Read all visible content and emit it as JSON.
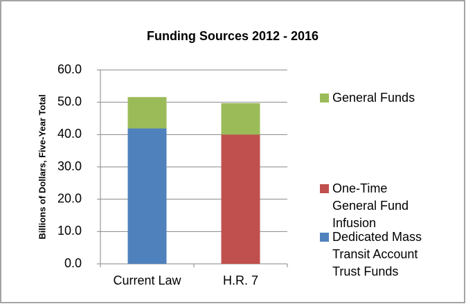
{
  "chart_data": {
    "type": "stacked_bar",
    "title": "Funding Sources 2012 - 2016",
    "y_label": "Billions of Dollars, Five-Year Total",
    "categories": [
      "Current Law",
      "H.R. 7"
    ],
    "series": [
      {
        "name": "Dedicated Mass Transit Account Trust Funds",
        "color": "#4f81bd",
        "values": [
          41.9,
          0
        ]
      },
      {
        "name": "One-Time General Fund Infusion",
        "color": "#c0504d",
        "values": [
          0,
          40.0
        ]
      },
      {
        "name": "General Funds",
        "color": "#9bbb59",
        "values": [
          9.7,
          9.7
        ]
      }
    ],
    "ylim": [
      0,
      60
    ],
    "yticks": [
      {
        "value": 0,
        "label": "0.0"
      },
      {
        "value": 10,
        "label": "10.0"
      },
      {
        "value": 20,
        "label": "20.0"
      },
      {
        "value": 30,
        "label": "30.0"
      },
      {
        "value": 40,
        "label": "40.0"
      },
      {
        "value": 50,
        "label": "50.0"
      },
      {
        "value": 60,
        "label": "60.0"
      }
    ],
    "grid": true,
    "legend": "right"
  }
}
